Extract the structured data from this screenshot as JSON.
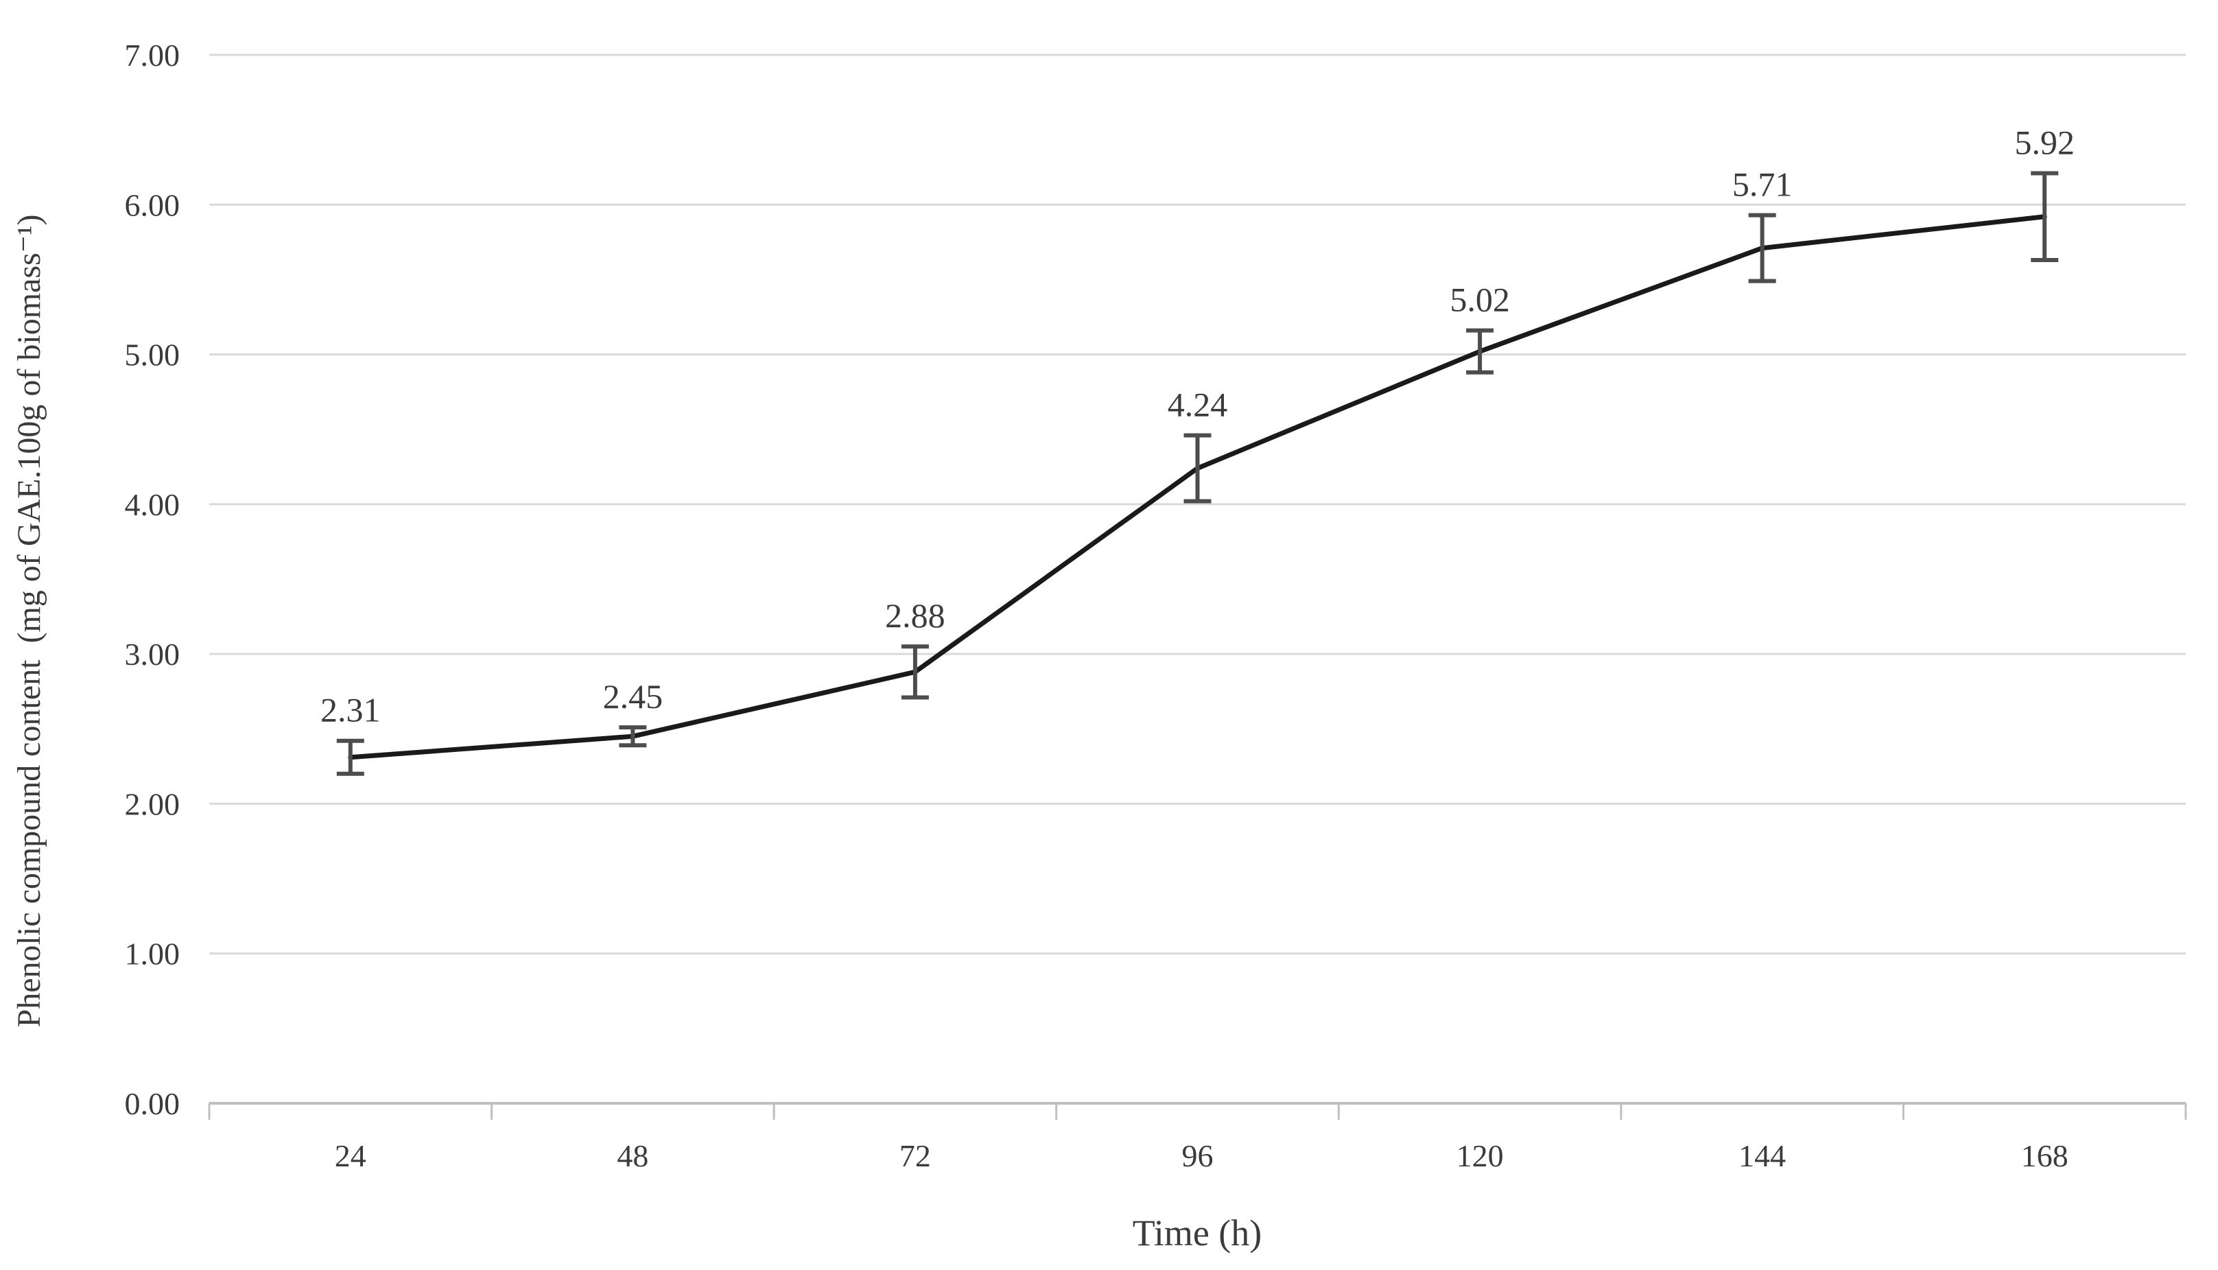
{
  "chart_data": {
    "type": "line",
    "title": "",
    "xlabel": "Time (h)",
    "ylabel": "Phenolic compound content  (mg of GAE.100g of biomass⁻¹)",
    "categories": [
      "24",
      "48",
      "72",
      "96",
      "120",
      "144",
      "168"
    ],
    "series": [
      {
        "name": "Phenolic compound content",
        "values": [
          2.31,
          2.45,
          2.88,
          4.24,
          5.02,
          5.71,
          5.92
        ],
        "error_bars": [
          0.11,
          0.06,
          0.17,
          0.22,
          0.14,
          0.22,
          0.29
        ],
        "data_labels": [
          "2.31",
          "2.45",
          "2.88",
          "4.24",
          "5.02",
          "5.71",
          "5.92"
        ]
      }
    ],
    "ylim": [
      0,
      7
    ],
    "ytick_step": 1,
    "ytick_labels": [
      "0.00",
      "1.00",
      "2.00",
      "3.00",
      "4.00",
      "5.00",
      "6.00",
      "7.00"
    ],
    "grid": true,
    "legend": "none",
    "colors": {
      "line": "#1a1a1a",
      "error_bar": "#4d4d4d",
      "gridline": "#d9d9d9",
      "axis_line": "#bfbfbf",
      "text": "#3b3b3b"
    }
  }
}
